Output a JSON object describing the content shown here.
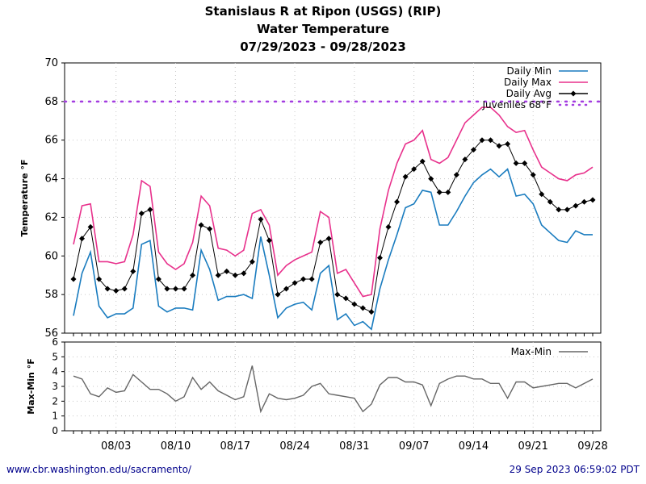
{
  "header": {
    "title_line1": "Stanislaus R at Ripon (USGS) (RIP)",
    "title_line2": "Water Temperature",
    "title_line3": "07/29/2023 - 09/28/2023"
  },
  "footer": {
    "url": "www.cbr.washington.edu/sacramento/",
    "timestamp": "29 Sep 2023 06:59:02 PDT"
  },
  "chart_data": [
    {
      "type": "line",
      "ylabel": "Temperature °F",
      "ylim": [
        56,
        70
      ],
      "yticks": [
        56,
        58,
        60,
        62,
        64,
        66,
        68,
        70
      ],
      "x_start": "07/29/2023",
      "x_end": "09/28/2023",
      "xtick_labels": [
        "08/03",
        "08/10",
        "08/17",
        "08/24",
        "08/31",
        "09/07",
        "09/14",
        "09/21",
        "09/28"
      ],
      "grid": true,
      "legend_placement": "top-right",
      "series": [
        {
          "name": "Daily Min",
          "color": "#1a7cbf",
          "values": [
            56.9,
            59.1,
            60.2,
            57.4,
            56.8,
            57.0,
            57.0,
            57.3,
            60.6,
            60.8,
            57.4,
            57.1,
            57.3,
            57.3,
            57.2,
            60.3,
            59.3,
            57.7,
            57.9,
            57.9,
            58.0,
            57.8,
            61.0,
            59.0,
            56.8,
            57.3,
            57.5,
            57.6,
            57.2,
            59.1,
            59.5,
            56.7,
            57.0,
            56.4,
            56.6,
            56.2,
            58.3,
            59.8,
            61.1,
            62.5,
            62.7,
            63.4,
            63.3,
            61.6,
            61.6,
            62.3,
            63.1,
            63.8,
            64.2,
            64.5,
            64.1,
            64.5,
            63.1,
            63.2,
            62.7,
            61.6,
            61.2,
            60.8,
            60.7,
            61.3,
            61.1,
            61.1
          ]
        },
        {
          "name": "Daily Max",
          "color": "#e8318c",
          "values": [
            60.6,
            62.6,
            62.7,
            59.7,
            59.7,
            59.6,
            59.7,
            61.1,
            63.9,
            63.6,
            60.2,
            59.6,
            59.3,
            59.6,
            60.7,
            63.1,
            62.6,
            60.4,
            60.3,
            60.0,
            60.3,
            62.2,
            62.4,
            61.6,
            59.0,
            59.5,
            59.8,
            60.0,
            60.2,
            62.3,
            62.0,
            59.1,
            59.3,
            58.6,
            57.9,
            58.0,
            61.4,
            63.4,
            64.8,
            65.8,
            66.0,
            66.5,
            65.0,
            64.8,
            65.1,
            66.0,
            66.9,
            67.3,
            67.7,
            67.7,
            67.3,
            66.7,
            66.4,
            66.5,
            65.5,
            64.6,
            64.3,
            64.0,
            63.9,
            64.2,
            64.3,
            64.6
          ]
        },
        {
          "name": "Daily Avg",
          "color": "#000000",
          "marker": "diamond",
          "values": [
            58.8,
            60.9,
            61.5,
            58.8,
            58.3,
            58.2,
            58.3,
            59.2,
            62.2,
            62.4,
            58.8,
            58.3,
            58.3,
            58.3,
            59.0,
            61.6,
            61.4,
            59.0,
            59.2,
            59.0,
            59.1,
            59.7,
            61.9,
            60.8,
            58.0,
            58.3,
            58.6,
            58.8,
            58.8,
            60.7,
            60.9,
            58.0,
            57.8,
            57.5,
            57.3,
            57.1,
            59.9,
            61.5,
            62.8,
            64.1,
            64.5,
            64.9,
            64.0,
            63.3,
            63.3,
            64.2,
            65.0,
            65.5,
            66.0,
            66.0,
            65.7,
            65.8,
            64.8,
            64.8,
            64.2,
            63.2,
            62.8,
            62.4,
            62.4,
            62.6,
            62.8,
            62.9
          ]
        },
        {
          "name": "Juveniles 68°F",
          "color": "#a33de0",
          "style": "dotted",
          "constant": 68
        }
      ]
    },
    {
      "type": "line",
      "ylabel": "Max-Min °F",
      "ylim": [
        0,
        6
      ],
      "yticks": [
        0,
        1,
        2,
        3,
        4,
        5,
        6
      ],
      "grid": true,
      "legend_placement": "top-right",
      "series": [
        {
          "name": "Max-Min",
          "color": "#666666",
          "values": [
            3.7,
            3.5,
            2.5,
            2.3,
            2.9,
            2.6,
            2.7,
            3.8,
            3.3,
            2.8,
            2.8,
            2.5,
            2.0,
            2.3,
            3.6,
            2.8,
            3.3,
            2.7,
            2.4,
            2.1,
            2.3,
            4.4,
            1.3,
            2.5,
            2.2,
            2.1,
            2.2,
            2.4,
            3.0,
            3.2,
            2.5,
            2.4,
            2.3,
            2.2,
            1.3,
            1.8,
            3.1,
            3.6,
            3.6,
            3.3,
            3.3,
            3.1,
            1.7,
            3.2,
            3.5,
            3.7,
            3.7,
            3.5,
            3.5,
            3.2,
            3.2,
            2.2,
            3.3,
            3.3,
            2.9,
            3.0,
            3.1,
            3.2,
            3.2,
            2.9,
            3.2,
            3.5
          ]
        }
      ]
    }
  ]
}
